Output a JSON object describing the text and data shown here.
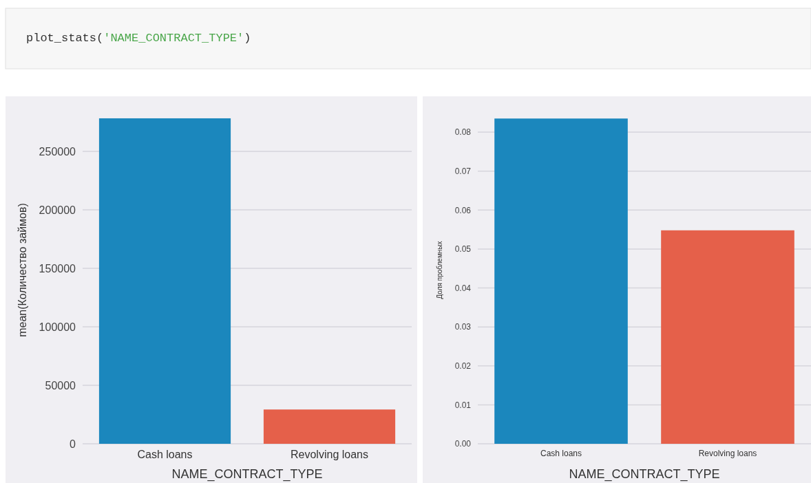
{
  "chart_data": [
    {
      "type": "bar",
      "annotations": [
        "plot_stats('NAME_CONTRACT_TYPE')"
      ],
      "categories": [
        "Cash loans",
        "Revolving loans"
      ],
      "values": [
        278200,
        29300
      ],
      "colors": [
        "#1b87bd",
        "#e5604a"
      ],
      "ylabel": "mean(Количество займов)",
      "xlabel": "NAME_CONTRACT_TYPE",
      "ylim": [
        0,
        297000
      ],
      "yticks": [
        0,
        50000,
        100000,
        150000,
        200000,
        250000
      ],
      "grid": "y"
    },
    {
      "type": "bar",
      "categories": [
        "Cash loans",
        "Revolving loans"
      ],
      "values": [
        0.0835,
        0.0548
      ],
      "colors": [
        "#1b87bd",
        "#e5604a"
      ],
      "ylabel": "Доля проблемных",
      "xlabel": "NAME_CONTRACT_TYPE",
      "ylim": [
        0,
        0.0892
      ],
      "yticks": [
        {
          "value": 0,
          "label": "0.00"
        },
        0.01,
        0.02,
        0.03,
        0.04,
        0.05,
        0.06,
        0.07,
        0.08
      ],
      "grid": "y"
    }
  ]
}
